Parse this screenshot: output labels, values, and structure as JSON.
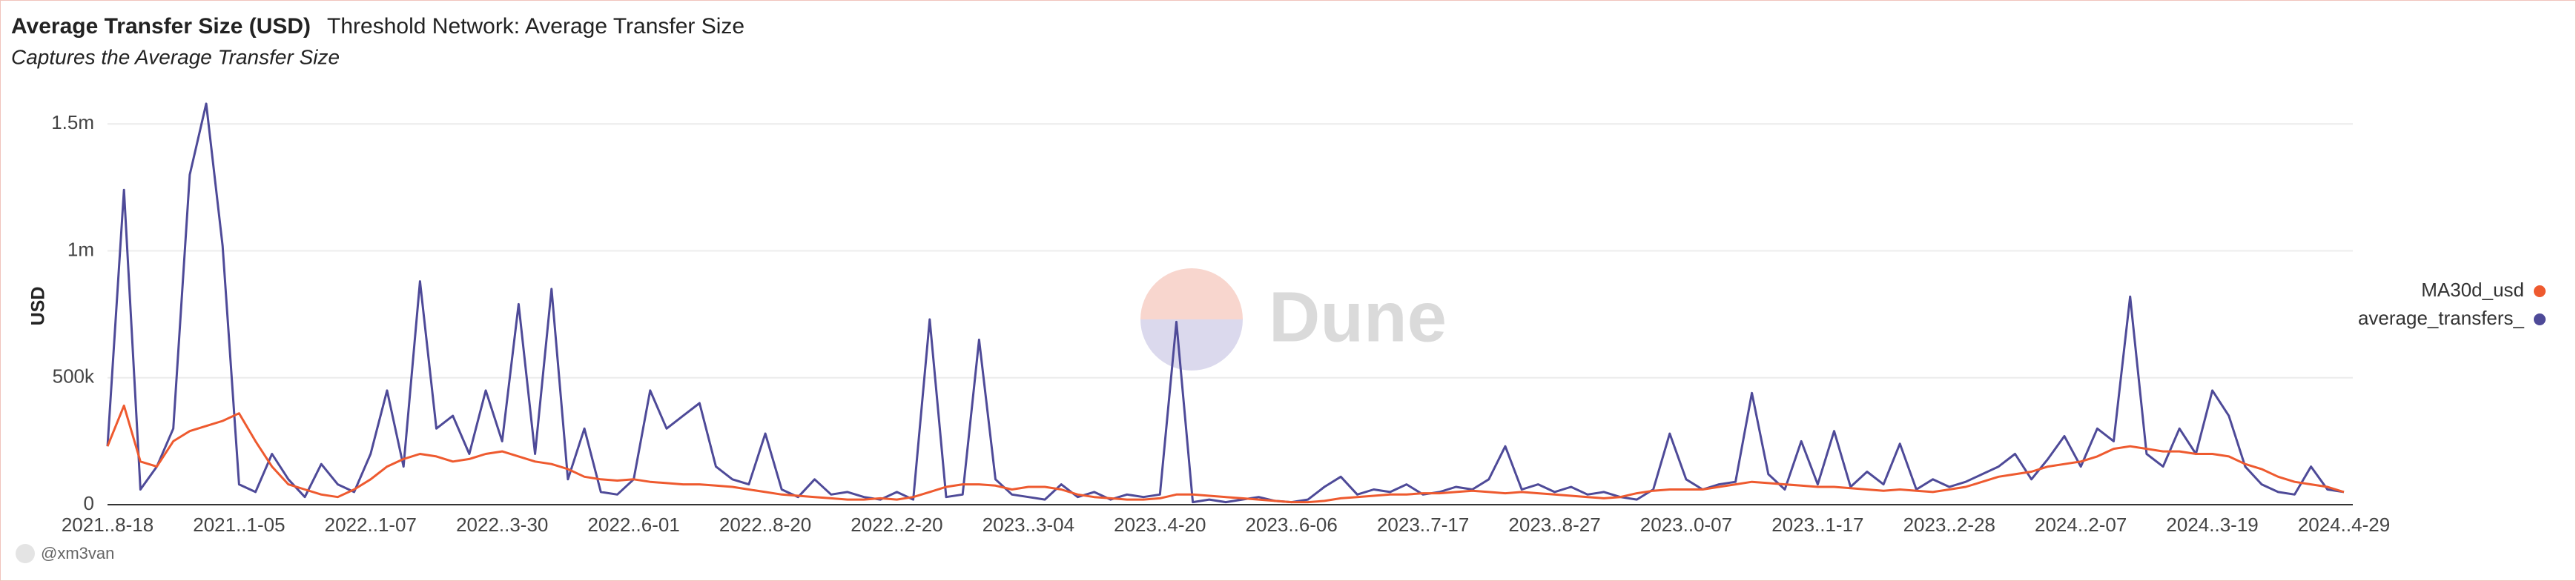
{
  "chart_data": {
    "type": "line",
    "title": "Average Transfer Size (USD)",
    "subtitle": "Threshold Network: Average Transfer Size",
    "description": "Captures the Average Transfer Size",
    "y_label": "USD",
    "author": "@xm3van",
    "watermark": "Dune",
    "categories": [
      "2021..8-18",
      null,
      null,
      null,
      null,
      null,
      null,
      null,
      "2021..1-05",
      null,
      null,
      null,
      null,
      null,
      null,
      null,
      "2022..1-07",
      null,
      null,
      null,
      null,
      null,
      null,
      null,
      "2022..3-30",
      null,
      null,
      null,
      null,
      null,
      null,
      null,
      "2022..6-01",
      null,
      null,
      null,
      null,
      null,
      null,
      null,
      "2022..8-20",
      null,
      null,
      null,
      null,
      null,
      null,
      null,
      "2022..2-20",
      null,
      null,
      null,
      null,
      null,
      null,
      null,
      "2023..3-04",
      null,
      null,
      null,
      null,
      null,
      null,
      null,
      "2023..4-20",
      null,
      null,
      null,
      null,
      null,
      null,
      null,
      "2023..6-06",
      null,
      null,
      null,
      null,
      null,
      null,
      null,
      "2023..7-17",
      null,
      null,
      null,
      null,
      null,
      null,
      null,
      "2023..8-27",
      null,
      null,
      null,
      null,
      null,
      null,
      null,
      "2023..0-07",
      null,
      null,
      null,
      null,
      null,
      null,
      null,
      "2023..1-17",
      null,
      null,
      null,
      null,
      null,
      null,
      null,
      "2023..2-28",
      null,
      null,
      null,
      null,
      null,
      null,
      null,
      "2024..2-07",
      null,
      null,
      null,
      null,
      null,
      null,
      null,
      "2024..3-19",
      null,
      null,
      null,
      null,
      null,
      null,
      null,
      "2024..4-29"
    ],
    "series": [
      {
        "name": "MA30d_usd",
        "color": "#ee5a2f",
        "values": [
          230000,
          390000,
          170000,
          150000,
          250000,
          290000,
          310000,
          330000,
          360000,
          250000,
          150000,
          80000,
          60000,
          40000,
          30000,
          60000,
          100000,
          150000,
          180000,
          200000,
          190000,
          170000,
          180000,
          200000,
          210000,
          190000,
          170000,
          160000,
          140000,
          110000,
          100000,
          95000,
          100000,
          90000,
          85000,
          80000,
          80000,
          75000,
          70000,
          60000,
          50000,
          40000,
          35000,
          30000,
          25000,
          20000,
          20000,
          25000,
          20000,
          30000,
          50000,
          70000,
          80000,
          80000,
          75000,
          60000,
          70000,
          70000,
          60000,
          40000,
          30000,
          25000,
          20000,
          20000,
          25000,
          40000,
          40000,
          35000,
          30000,
          25000,
          20000,
          15000,
          10000,
          10000,
          15000,
          25000,
          30000,
          35000,
          40000,
          40000,
          45000,
          45000,
          50000,
          55000,
          50000,
          45000,
          50000,
          45000,
          40000,
          35000,
          30000,
          25000,
          30000,
          45000,
          55000,
          60000,
          60000,
          60000,
          70000,
          80000,
          90000,
          85000,
          80000,
          75000,
          70000,
          70000,
          65000,
          60000,
          55000,
          60000,
          55000,
          50000,
          60000,
          70000,
          90000,
          110000,
          120000,
          130000,
          150000,
          160000,
          170000,
          190000,
          220000,
          230000,
          220000,
          210000,
          210000,
          200000,
          200000,
          190000,
          160000,
          140000,
          110000,
          90000,
          80000,
          70000,
          50000
        ]
      },
      {
        "name": "average_transfers_",
        "color": "#4e4a98",
        "values": [
          230000,
          1240000,
          60000,
          150000,
          300000,
          1300000,
          1580000,
          1020000,
          80000,
          50000,
          200000,
          100000,
          30000,
          160000,
          80000,
          50000,
          200000,
          450000,
          150000,
          880000,
          300000,
          350000,
          200000,
          450000,
          250000,
          790000,
          200000,
          850000,
          100000,
          300000,
          50000,
          40000,
          100000,
          450000,
          300000,
          350000,
          400000,
          150000,
          100000,
          80000,
          280000,
          60000,
          30000,
          100000,
          40000,
          50000,
          30000,
          20000,
          50000,
          20000,
          730000,
          30000,
          40000,
          650000,
          100000,
          40000,
          30000,
          20000,
          80000,
          30000,
          50000,
          20000,
          40000,
          30000,
          40000,
          720000,
          10000,
          20000,
          10000,
          20000,
          30000,
          15000,
          10000,
          20000,
          70000,
          110000,
          40000,
          60000,
          50000,
          80000,
          40000,
          50000,
          70000,
          60000,
          100000,
          230000,
          60000,
          80000,
          50000,
          70000,
          40000,
          50000,
          30000,
          20000,
          60000,
          280000,
          100000,
          60000,
          80000,
          90000,
          440000,
          120000,
          60000,
          250000,
          80000,
          290000,
          70000,
          130000,
          80000,
          240000,
          60000,
          100000,
          70000,
          90000,
          120000,
          150000,
          200000,
          100000,
          180000,
          270000,
          150000,
          300000,
          250000,
          820000,
          200000,
          150000,
          300000,
          200000,
          450000,
          350000,
          150000,
          80000,
          50000,
          40000,
          150000,
          60000,
          50000
        ]
      }
    ],
    "ylim": [
      0,
      1600000
    ],
    "yticks": [
      0,
      {
        "value": 500000,
        "label": "500k"
      },
      {
        "value": 1000000,
        "label": "1m"
      },
      {
        "value": 1500000,
        "label": "1.5m"
      }
    ],
    "grid": true,
    "legend": "right"
  }
}
